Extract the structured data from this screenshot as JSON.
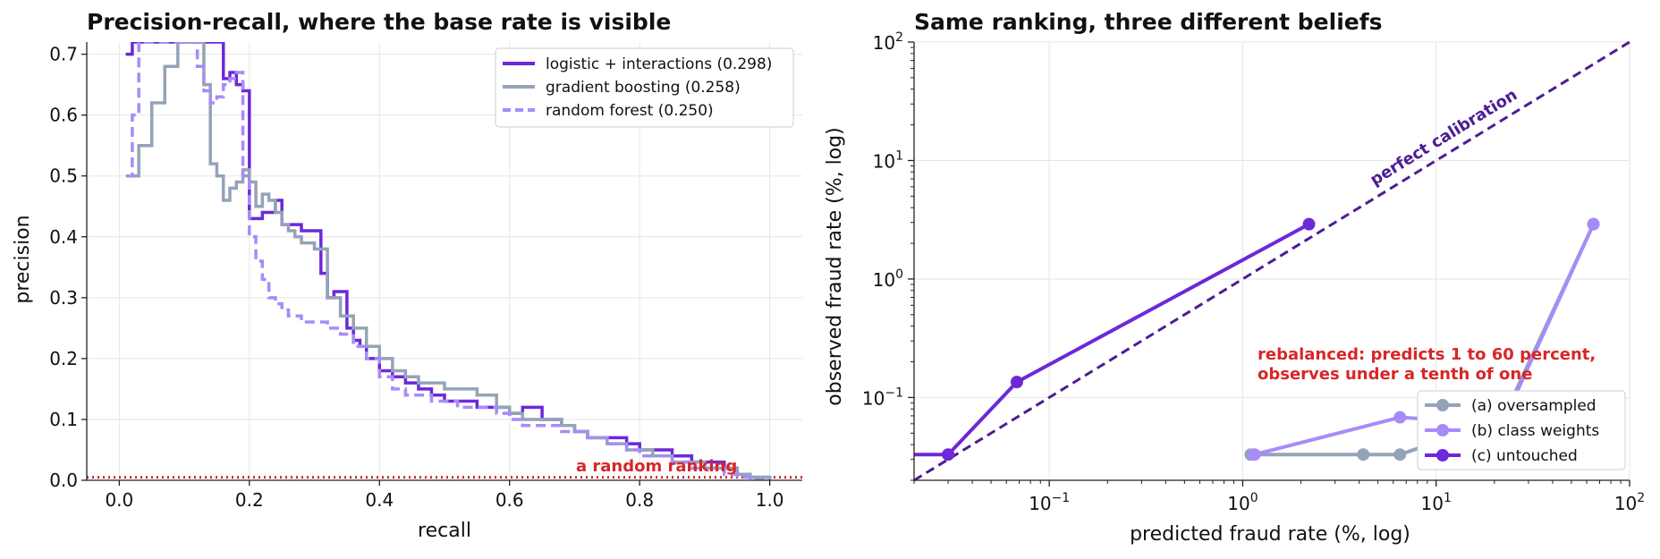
{
  "chart_data": [
    {
      "type": "line",
      "title": "Precision-recall, where the base rate is visible",
      "xlabel": "recall",
      "ylabel": "precision",
      "xlim": [
        -0.05,
        1.05
      ],
      "ylim": [
        0.0,
        0.72
      ],
      "xticks": [
        "0.0",
        "0.2",
        "0.4",
        "0.6",
        "0.8",
        "1.0"
      ],
      "yticks": [
        "0.0",
        "0.1",
        "0.2",
        "0.3",
        "0.4",
        "0.5",
        "0.6",
        "0.7"
      ],
      "grid": true,
      "legend_position": "top-right",
      "baseline": {
        "y": 0.005,
        "label": "a random ranking",
        "color": "#d62728"
      },
      "series": [
        {
          "name": "logistic + interactions  (0.298)",
          "color": "#6d28d9",
          "dash": "solid",
          "x": [
            0.01,
            0.02,
            0.04,
            0.06,
            0.08,
            0.1,
            0.12,
            0.14,
            0.15,
            0.16,
            0.17,
            0.18,
            0.19,
            0.2,
            0.21,
            0.22,
            0.23,
            0.24,
            0.25,
            0.26,
            0.28,
            0.3,
            0.31,
            0.32,
            0.33,
            0.35,
            0.36,
            0.37,
            0.38,
            0.4,
            0.42,
            0.44,
            0.46,
            0.48,
            0.5,
            0.52,
            0.55,
            0.58,
            0.6,
            0.62,
            0.65,
            0.68,
            0.7,
            0.72,
            0.75,
            0.78,
            0.8,
            0.82,
            0.85,
            0.88,
            0.9,
            0.93,
            0.95,
            0.97,
            1.0
          ],
          "y": [
            0.7,
            0.72,
            0.72,
            0.72,
            0.72,
            0.72,
            0.72,
            0.72,
            0.72,
            0.66,
            0.67,
            0.65,
            0.64,
            0.43,
            0.43,
            0.44,
            0.44,
            0.46,
            0.42,
            0.42,
            0.41,
            0.41,
            0.34,
            0.3,
            0.31,
            0.25,
            0.23,
            0.22,
            0.2,
            0.18,
            0.17,
            0.16,
            0.15,
            0.14,
            0.13,
            0.13,
            0.12,
            0.12,
            0.11,
            0.12,
            0.1,
            0.09,
            0.08,
            0.07,
            0.07,
            0.06,
            0.05,
            0.05,
            0.04,
            0.03,
            0.03,
            0.02,
            0.01,
            0.005,
            0.0
          ]
        },
        {
          "name": "gradient boosting  (0.258)",
          "color": "#94a3b8",
          "dash": "solid",
          "x": [
            0.02,
            0.03,
            0.05,
            0.07,
            0.09,
            0.11,
            0.12,
            0.13,
            0.14,
            0.15,
            0.16,
            0.17,
            0.18,
            0.19,
            0.2,
            0.21,
            0.22,
            0.23,
            0.24,
            0.25,
            0.26,
            0.27,
            0.28,
            0.3,
            0.32,
            0.34,
            0.36,
            0.38,
            0.4,
            0.42,
            0.44,
            0.46,
            0.48,
            0.5,
            0.52,
            0.55,
            0.58,
            0.6,
            0.62,
            0.65,
            0.68,
            0.7,
            0.72,
            0.75,
            0.78,
            0.8,
            0.82,
            0.85,
            0.88,
            0.9,
            0.93,
            0.95,
            0.97,
            1.0
          ],
          "y": [
            0.5,
            0.55,
            0.62,
            0.68,
            0.72,
            0.72,
            0.72,
            0.65,
            0.52,
            0.5,
            0.46,
            0.48,
            0.49,
            0.51,
            0.49,
            0.45,
            0.47,
            0.46,
            0.44,
            0.42,
            0.41,
            0.4,
            0.39,
            0.38,
            0.3,
            0.27,
            0.25,
            0.22,
            0.2,
            0.18,
            0.17,
            0.16,
            0.16,
            0.15,
            0.15,
            0.14,
            0.12,
            0.11,
            0.1,
            0.1,
            0.09,
            0.08,
            0.07,
            0.06,
            0.05,
            0.05,
            0.04,
            0.03,
            0.03,
            0.02,
            0.02,
            0.01,
            0.005,
            0.0
          ]
        },
        {
          "name": "random forest  (0.250)",
          "color": "#a78bfa",
          "dash": "dashed",
          "x": [
            0.01,
            0.02,
            0.03,
            0.05,
            0.07,
            0.09,
            0.11,
            0.12,
            0.13,
            0.14,
            0.15,
            0.16,
            0.17,
            0.18,
            0.19,
            0.2,
            0.21,
            0.22,
            0.23,
            0.24,
            0.25,
            0.26,
            0.28,
            0.3,
            0.32,
            0.34,
            0.36,
            0.38,
            0.4,
            0.42,
            0.44,
            0.46,
            0.48,
            0.5,
            0.52,
            0.55,
            0.58,
            0.6,
            0.62,
            0.65,
            0.68,
            0.7,
            0.72,
            0.75,
            0.78,
            0.8,
            0.82,
            0.85,
            0.88,
            0.9,
            0.93,
            0.95,
            0.97,
            1.0
          ],
          "y": [
            0.5,
            0.6,
            0.72,
            0.72,
            0.72,
            0.72,
            0.72,
            0.68,
            0.64,
            0.62,
            0.63,
            0.65,
            0.66,
            0.67,
            0.5,
            0.4,
            0.36,
            0.33,
            0.3,
            0.29,
            0.28,
            0.27,
            0.26,
            0.26,
            0.25,
            0.24,
            0.22,
            0.2,
            0.17,
            0.15,
            0.14,
            0.14,
            0.13,
            0.13,
            0.12,
            0.12,
            0.11,
            0.1,
            0.09,
            0.09,
            0.08,
            0.08,
            0.07,
            0.06,
            0.05,
            0.04,
            0.04,
            0.03,
            0.02,
            0.02,
            0.01,
            0.005,
            0.0,
            0.0
          ]
        }
      ]
    },
    {
      "type": "line",
      "title": "Same ranking, three different beliefs",
      "xlabel": "predicted fraud rate (%, log)",
      "ylabel": "observed fraud rate (%, log)",
      "xscale": "log",
      "yscale": "log",
      "xlim": [
        0.02,
        100
      ],
      "ylim": [
        0.02,
        100
      ],
      "xticks": [
        0.1,
        1,
        10,
        100
      ],
      "yticks": [
        0.1,
        1,
        10,
        100
      ],
      "grid": true,
      "legend_position": "bottom-right",
      "reference_line": {
        "label": "perfect calibration",
        "color": "#4c1d95",
        "dash": "dashed"
      },
      "annotation": {
        "lines": [
          "rebalanced: predicts 1 to 60 percent,",
          "observes under a tenth of one"
        ],
        "color": "#d62728"
      },
      "series": [
        {
          "name": "(a) oversampled",
          "color": "#94a3b8",
          "x": [
            1.1,
            4.2,
            6.5,
            22,
            65
          ],
          "y": [
            0.033,
            0.033,
            0.033,
            0.065,
            2.9
          ]
        },
        {
          "name": "(b) class weights",
          "color": "#a78bfa",
          "x": [
            1.15,
            6.5,
            22,
            65
          ],
          "y": [
            0.033,
            0.068,
            0.06,
            2.9
          ]
        },
        {
          "name": "(c) untouched",
          "color": "#6d28d9",
          "x": [
            0.02,
            0.03,
            0.068,
            2.2
          ],
          "y": [
            0.033,
            0.033,
            0.135,
            2.9
          ]
        }
      ]
    }
  ]
}
